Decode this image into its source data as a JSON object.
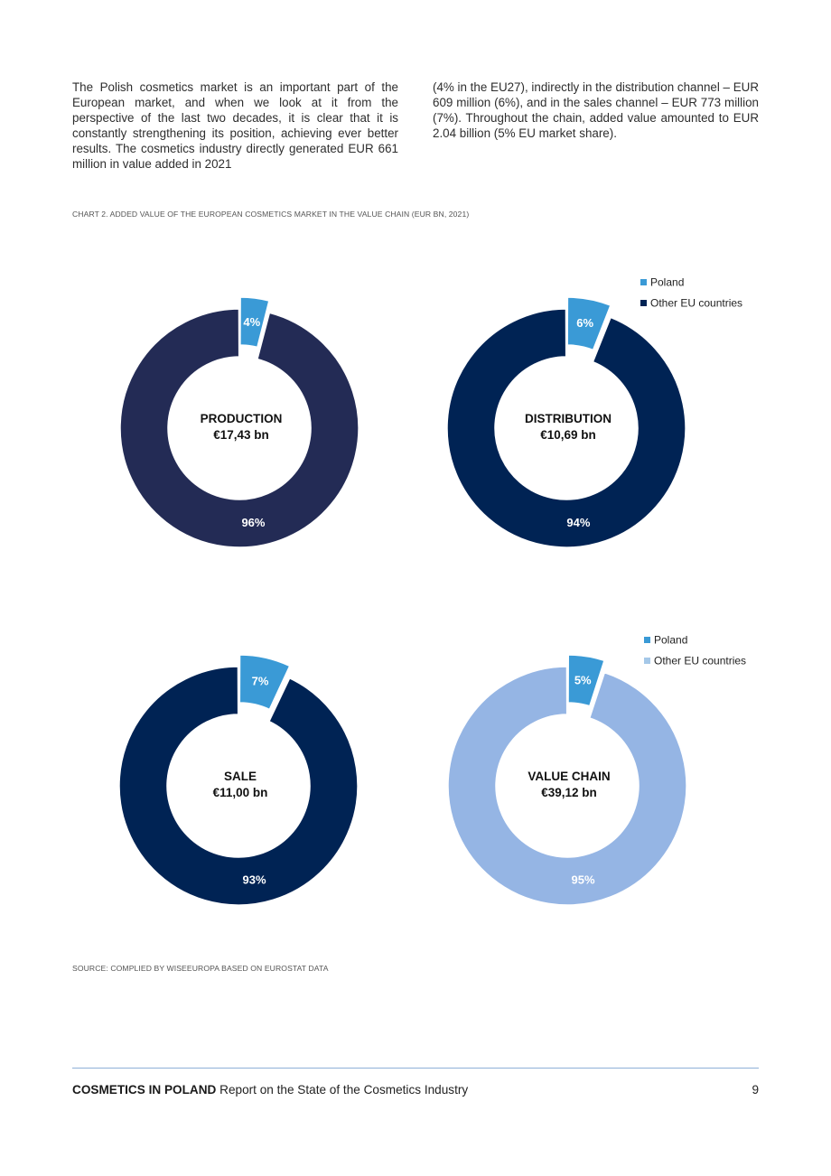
{
  "intro": {
    "col1": "The Polish cosmetics market is an important part of the European market, and when we look at it from the perspective of the last two decades, it is clear that it is constantly strengthening its position, achieving ever better results. The cosmetics industry directly generated EUR 661 million in value added in 2021",
    "col2": "(4% in the EU27), indirectly in the distribution channel – EUR 609 million (6%), and in the sales channel – EUR 773 million (7%). Throughout the chain, added value amounted to EUR 2.04 billion (5% EU market share)."
  },
  "caption": "CHART 2. ADDED VALUE OF THE EUROPEAN COSMETICS MARKET IN THE VALUE CHAIN (EUR BN, 2021)",
  "source": "SOURCE: COMPLIED BY WISEEUROPA BASED ON EUROSTAT DATA",
  "chart_data": [
    {
      "type": "pie",
      "title": "PRODUCTION",
      "total_label": "€17,43 bn",
      "categories": [
        "Poland",
        "Other EU countries"
      ],
      "values": [
        4,
        96
      ],
      "labels": [
        "4%",
        "96%"
      ],
      "colors": [
        "#3a9ad6",
        "#232b55"
      ]
    },
    {
      "type": "pie",
      "title": "DISTRIBUTION",
      "total_label": "€10,69 bn",
      "categories": [
        "Poland",
        "Other EU countries"
      ],
      "values": [
        6,
        94
      ],
      "labels": [
        "6%",
        "94%"
      ],
      "colors": [
        "#3a9ad6",
        "#002354"
      ],
      "legend": [
        "Poland",
        "Other EU countries"
      ]
    },
    {
      "type": "pie",
      "title": "SALE",
      "total_label": "€11,00 bn",
      "categories": [
        "Poland",
        "Other EU countries"
      ],
      "values": [
        7,
        93
      ],
      "labels": [
        "7%",
        "93%"
      ],
      "colors": [
        "#3a9ad6",
        "#002354"
      ]
    },
    {
      "type": "pie",
      "title": "VALUE CHAIN",
      "total_label": "€39,12 bn",
      "categories": [
        "Poland",
        "Other EU countries"
      ],
      "values": [
        5,
        95
      ],
      "labels": [
        "5%",
        "95%"
      ],
      "colors": [
        "#3a9ad6",
        "#95b5e4"
      ],
      "legend": [
        "Poland",
        "Other EU countries"
      ],
      "legend_colors": [
        "#3a9ad6",
        "#a5c8e8"
      ]
    }
  ],
  "footer": {
    "brand": "COSMETICS IN POLAND",
    "subtitle": "Report on the State of the Cosmetics Industry",
    "page": "9"
  }
}
